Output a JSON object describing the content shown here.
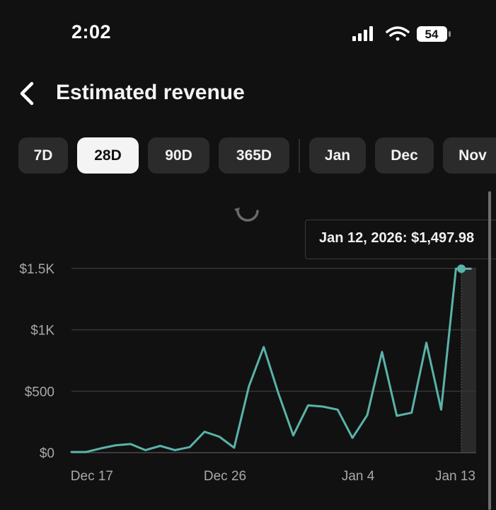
{
  "status_bar": {
    "time": "2:02",
    "battery": "54",
    "icons": [
      "cellular-signal-icon",
      "wifi-icon",
      "battery-icon"
    ]
  },
  "header": {
    "back_icon": "chevron-left-icon",
    "title": "Estimated revenue"
  },
  "periods": {
    "selected": "28D",
    "items": [
      "7D",
      "28D",
      "90D",
      "365D",
      "Jan",
      "Dec",
      "Nov"
    ]
  },
  "colors": {
    "background": "#111111",
    "line": "#5ab3a8",
    "chip": "#2b2b2b",
    "chip_active": "#f4f4f4"
  },
  "tooltip": {
    "text": "Jan 12, 2026: $1,497.98"
  },
  "chart_data": {
    "type": "line",
    "ylim": [
      0,
      1500
    ],
    "y_ticks": [
      {
        "value": 0,
        "label": "$0"
      },
      {
        "value": 500,
        "label": "$500"
      },
      {
        "value": 1000,
        "label": "$1K"
      },
      {
        "value": 1500,
        "label": "$1.5K"
      }
    ],
    "x_ticks": [
      {
        "index": 1,
        "label": "Dec 17"
      },
      {
        "index": 10,
        "label": "Dec 26"
      },
      {
        "index": 19,
        "label": "Jan 4"
      },
      {
        "index": 28,
        "label": "Jan 13"
      }
    ],
    "grid": true,
    "x": [
      "Dec 16",
      "Dec 17",
      "Dec 18",
      "Dec 19",
      "Dec 20",
      "Dec 21",
      "Dec 22",
      "Dec 23",
      "Dec 24",
      "Dec 25",
      "Dec 26",
      "Dec 27",
      "Dec 28",
      "Dec 29",
      "Dec 30",
      "Dec 31",
      "Jan 1",
      "Jan 2",
      "Jan 3",
      "Jan 4",
      "Jan 5",
      "Jan 6",
      "Jan 7",
      "Jan 8",
      "Jan 9",
      "Jan 10",
      "Jan 11",
      "Jan 12"
    ],
    "series": [
      {
        "values": [
          5,
          5,
          35,
          60,
          70,
          20,
          55,
          20,
          45,
          170,
          130,
          40,
          540,
          860,
          480,
          140,
          385,
          375,
          350,
          120,
          305,
          820,
          300,
          325,
          895,
          350,
          1497.98,
          1497.98
        ]
      }
    ],
    "highlighted": {
      "date": "Jan 12, 2026",
      "value": 1497.98
    }
  }
}
